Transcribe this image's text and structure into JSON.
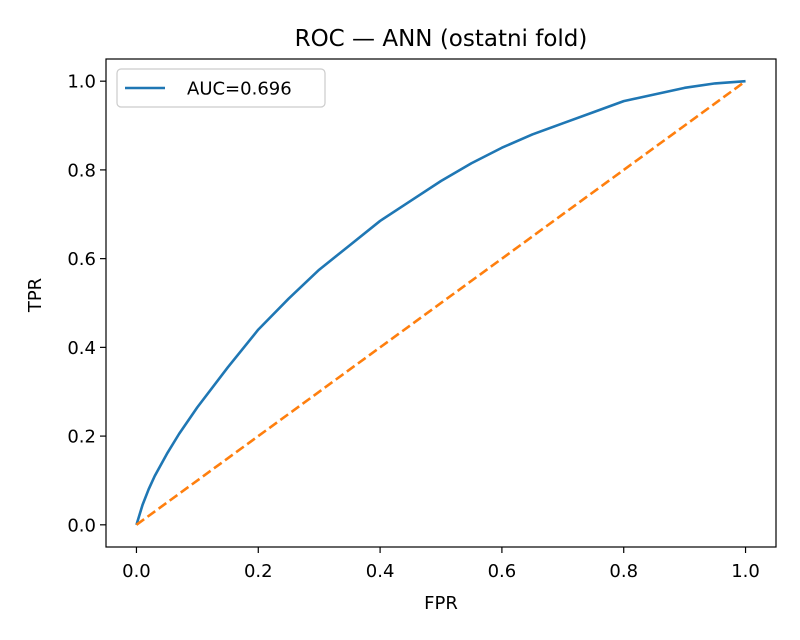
{
  "chart_data": {
    "type": "line",
    "title": "ROC — ANN (ostatni fold)",
    "xlabel": "FPR",
    "ylabel": "TPR",
    "xlim": [
      -0.05,
      1.05
    ],
    "ylim": [
      -0.05,
      1.05
    ],
    "xticks": [
      0.0,
      0.2,
      0.4,
      0.6,
      0.8,
      1.0
    ],
    "yticks": [
      0.0,
      0.2,
      0.4,
      0.6,
      0.8,
      1.0
    ],
    "xtick_labels": [
      "0.0",
      "0.2",
      "0.4",
      "0.6",
      "0.8",
      "1.0"
    ],
    "ytick_labels": [
      "0.0",
      "0.2",
      "0.4",
      "0.6",
      "0.8",
      "1.0"
    ],
    "grid": false,
    "legend_position": "top-left",
    "series": [
      {
        "name": "AUC=0.696",
        "color": "#1f77b4",
        "style": "solid",
        "x": [
          0.0,
          0.01,
          0.02,
          0.03,
          0.05,
          0.07,
          0.1,
          0.15,
          0.2,
          0.25,
          0.3,
          0.35,
          0.4,
          0.45,
          0.5,
          0.55,
          0.6,
          0.65,
          0.7,
          0.75,
          0.8,
          0.85,
          0.9,
          0.95,
          1.0
        ],
        "y": [
          0.0,
          0.045,
          0.08,
          0.11,
          0.16,
          0.205,
          0.265,
          0.355,
          0.44,
          0.51,
          0.575,
          0.63,
          0.685,
          0.73,
          0.775,
          0.815,
          0.85,
          0.88,
          0.905,
          0.93,
          0.955,
          0.97,
          0.985,
          0.995,
          1.0
        ]
      },
      {
        "color": "#ff7f0e",
        "style": "dashed",
        "x": [
          0.0,
          1.0
        ],
        "y": [
          0.0,
          1.0
        ]
      }
    ]
  }
}
